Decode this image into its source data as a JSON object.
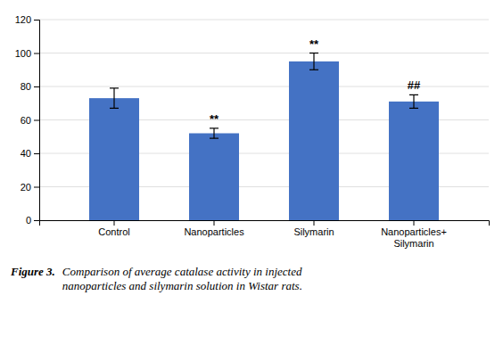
{
  "chart_data": {
    "type": "bar",
    "categories": [
      "Control",
      "Nanoparticles",
      "Silymarin",
      "Nanoparticles+\nSilymarin"
    ],
    "values": [
      73,
      52,
      95,
      71
    ],
    "errors": [
      6,
      3,
      5,
      4
    ],
    "color": "#4472C4",
    "ylim": [
      0,
      120
    ],
    "yticks": [
      0,
      20,
      40,
      60,
      80,
      100,
      120
    ],
    "grid": true,
    "annotations": [
      {
        "text": "**",
        "bar_index": 1
      },
      {
        "text": "**",
        "bar_index": 2
      },
      {
        "text": "##",
        "bar_index": 3
      }
    ],
    "caption_title": "Figure 3.",
    "caption": "Comparison of average catalase activity in injected\nnanoparticles and silymarin solution in Wistar rats."
  }
}
